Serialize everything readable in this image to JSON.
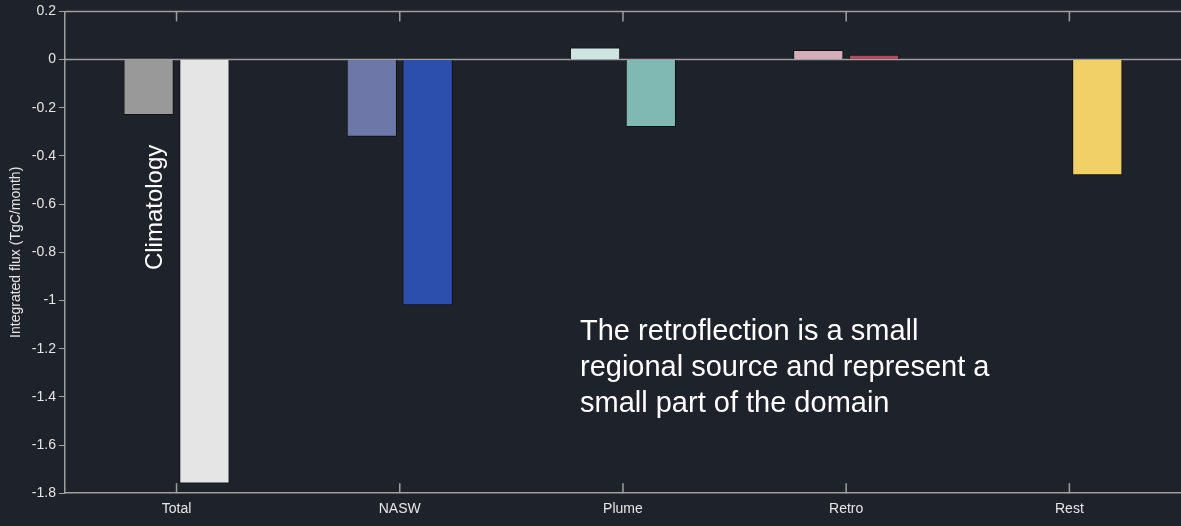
{
  "chart_data": {
    "type": "bar",
    "ylabel": "Integrated flux (TgC/month)",
    "categories": [
      "Total",
      "NASW",
      "Plume",
      "Retro",
      "Rest"
    ],
    "series": [
      {
        "colors": [
          "#999999",
          "#6e78a8",
          "#cfe3e0",
          "#d4adb8",
          "#4a4a3a"
        ],
        "values": [
          -0.23,
          -0.32,
          0.05,
          0.04,
          null
        ]
      },
      {
        "colors": [
          "#e5e5e5",
          "#2c4ead",
          "#80b9b4",
          "#b44a62",
          "#f1d066"
        ],
        "values": [
          -1.76,
          -1.02,
          -0.28,
          0.02,
          -0.48
        ]
      }
    ],
    "ylim": [
      -1.8,
      0.2
    ],
    "yticks": [
      {
        "value": 0.2,
        "label": "0.2"
      },
      0,
      {
        "value": -0.2,
        "label": "-0.2"
      },
      {
        "value": -0.4,
        "label": "-0.4"
      },
      {
        "value": -0.6,
        "label": "-0.6"
      },
      {
        "value": -0.8,
        "label": "-0.8"
      },
      -1,
      {
        "value": -1.2,
        "label": "-1.2"
      },
      {
        "value": -1.4,
        "label": "-1.4"
      },
      {
        "value": -1.6,
        "label": "-1.6"
      },
      {
        "value": -1.8,
        "label": "-1.8"
      }
    ],
    "ref_lines": [
      {
        "axis": "y",
        "value": 0,
        "color": "#a0a0a0"
      }
    ],
    "grid": false,
    "legend": false,
    "annotations": [
      "Climatology",
      "The retroflection is a small regional source and represent a small part of the domain"
    ]
  }
}
